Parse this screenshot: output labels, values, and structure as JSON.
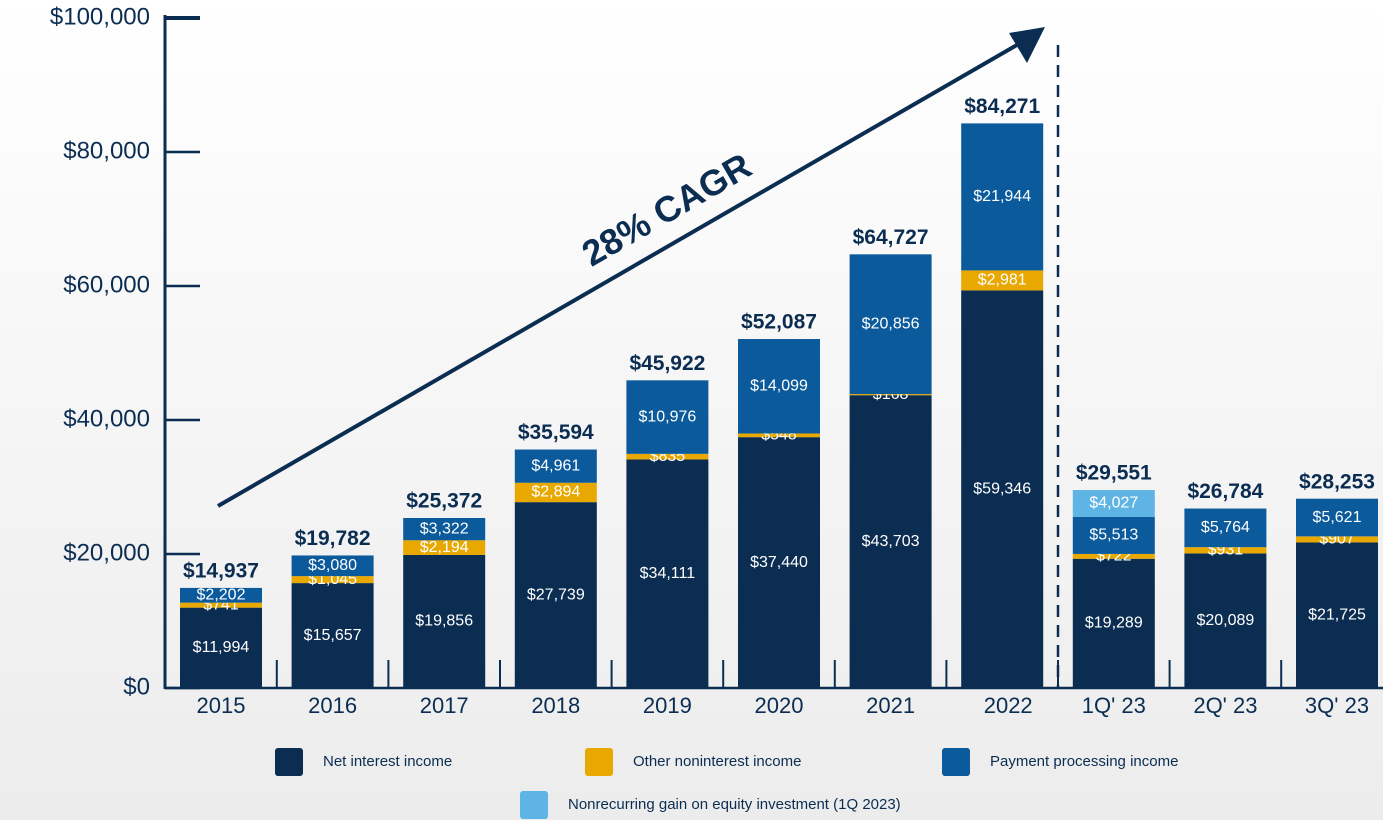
{
  "chart_data": {
    "type": "stacked-bar",
    "categories": [
      "2015",
      "2016",
      "2017",
      "2018",
      "2019",
      "2020",
      "2021",
      "2022",
      "1Q' 23",
      "2Q' 23",
      "3Q' 23"
    ],
    "series": [
      {
        "name": "Net interest income",
        "color": "#0b2d52",
        "values": [
          11994,
          15657,
          19856,
          27739,
          34111,
          37440,
          43703,
          59346,
          19289,
          20089,
          21725
        ],
        "value_labels": [
          "$11,994",
          "$15,657",
          "$19,856",
          "$27,739",
          "$34,111",
          "$37,440",
          "$43,703",
          "$59,346",
          "$19,289",
          "$20,089",
          "$21,725"
        ]
      },
      {
        "name": "Other noninterest income",
        "color": "#e8a800",
        "values": [
          741,
          1045,
          2194,
          2894,
          835,
          548,
          168,
          2981,
          722,
          931,
          907
        ],
        "value_labels": [
          "$741",
          "$1,045",
          "$2,194",
          "$2,894",
          "$835",
          "$548",
          "$168",
          "$2,981",
          "$722",
          "$931",
          "$907"
        ]
      },
      {
        "name": "Payment processing income",
        "color": "#0a5a9c",
        "values": [
          2202,
          3080,
          3322,
          4961,
          10976,
          14099,
          20856,
          21944,
          5513,
          5764,
          5621
        ],
        "value_labels": [
          "$2,202",
          "$3,080",
          "$3,322",
          "$4,961",
          "$10,976",
          "$14,099",
          "$20,856",
          "$21,944",
          "$5,513",
          "$5,764",
          "$5,621"
        ]
      },
      {
        "name": "Nonrecurring gain on equity investment (1Q 2023)",
        "color": "#5fb4e6",
        "values": [
          null,
          null,
          null,
          null,
          null,
          null,
          null,
          null,
          4027,
          null,
          null
        ],
        "value_labels": [
          null,
          null,
          null,
          null,
          null,
          null,
          null,
          null,
          "$4,027",
          null,
          null
        ]
      }
    ],
    "totals": [
      14937,
      19782,
      25372,
      35594,
      45922,
      52087,
      64727,
      84271,
      29551,
      26784,
      28253
    ],
    "total_labels": [
      "$14,937",
      "$19,782",
      "$25,372",
      "$35,594",
      "$45,922",
      "$52,087",
      "$64,727",
      "$84,271",
      "$29,551",
      "$26,784",
      "$28,253"
    ],
    "annotation": "28% CAGR",
    "ylim": [
      0,
      100000
    ],
    "yticks": [
      {
        "value": 0,
        "label": "$0"
      },
      {
        "value": 20000,
        "label": "$20,000"
      },
      {
        "value": 40000,
        "label": "$40,000"
      },
      {
        "value": 60000,
        "label": "$60,000"
      },
      {
        "value": 80000,
        "label": "$80,000"
      },
      {
        "value": 100000,
        "label": "$100,000"
      }
    ]
  }
}
